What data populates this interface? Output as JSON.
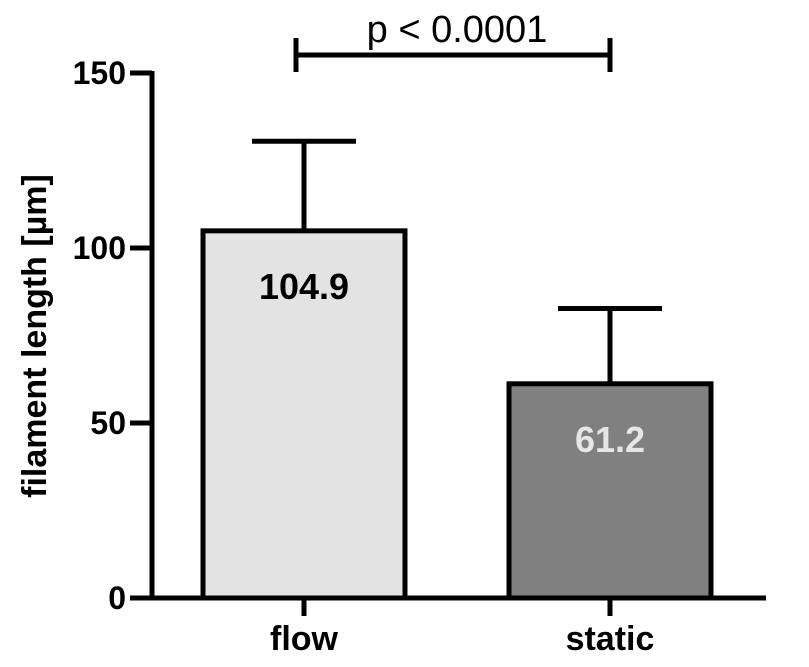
{
  "chart_data": {
    "type": "bar",
    "title": "",
    "xlabel": "",
    "ylabel": "filament length [µm]",
    "ylim": [
      0,
      150
    ],
    "yticks": [
      0,
      50,
      100,
      150
    ],
    "categories": [
      "flow",
      "static"
    ],
    "values": [
      104.9,
      61.2
    ],
    "error_upper": [
      130.5,
      82.7
    ],
    "data_labels": [
      "104.9",
      "61.2"
    ],
    "bar_colors": [
      "#e3e3e3",
      "#808080"
    ],
    "data_label_colors": [
      "#000000",
      "#e6e6e6"
    ],
    "significance": {
      "between": [
        "flow",
        "static"
      ],
      "label": "p < 0.0001"
    },
    "grid": false,
    "legend": "none"
  }
}
